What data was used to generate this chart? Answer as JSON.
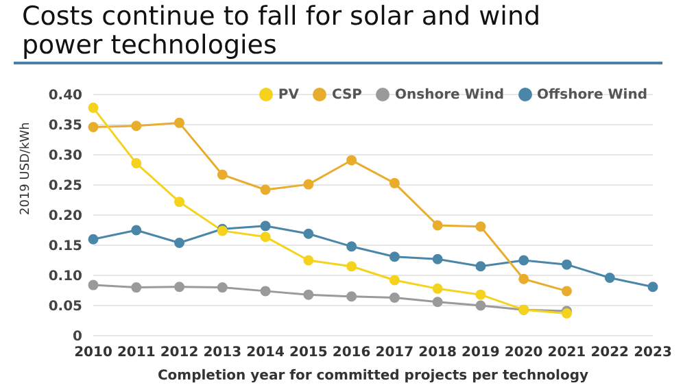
{
  "chart_data": {
    "type": "line",
    "title": "Costs continue to fall for solar and wind power technologies",
    "xlabel": "Completion year for committed projects per technology",
    "ylabel": "2019 USD/kWh",
    "categories": [
      "2010",
      "2011",
      "2012",
      "2013",
      "2014",
      "2015",
      "2016",
      "2017",
      "2018",
      "2019",
      "2020",
      "2021",
      "2022",
      "2023"
    ],
    "series": [
      {
        "name": "PV",
        "color": "#f5d21c",
        "values": [
          0.378,
          0.286,
          0.222,
          0.174,
          0.164,
          0.125,
          0.115,
          0.092,
          0.078,
          0.068,
          0.043,
          0.037,
          null,
          null
        ]
      },
      {
        "name": "CSP",
        "color": "#e8ad2c",
        "values": [
          0.346,
          0.348,
          0.353,
          0.267,
          0.242,
          0.251,
          0.291,
          0.253,
          0.183,
          0.181,
          0.094,
          0.074,
          null,
          null
        ]
      },
      {
        "name": "Onshore Wind",
        "color": "#9a9a9a",
        "values": [
          0.084,
          0.08,
          0.081,
          0.08,
          0.074,
          0.068,
          0.065,
          0.063,
          0.056,
          0.05,
          0.043,
          0.041,
          null,
          null
        ]
      },
      {
        "name": "Offshore Wind",
        "color": "#4a86a8",
        "values": [
          0.16,
          0.175,
          0.154,
          0.177,
          0.182,
          0.169,
          0.148,
          0.131,
          0.127,
          0.115,
          0.125,
          0.118,
          0.096,
          0.081
        ]
      }
    ],
    "ylim": [
      0,
      0.4
    ],
    "yticks": [
      0,
      {
        "value": 0.05,
        "label": "0.05"
      },
      {
        "value": 0.1,
        "label": "0.10"
      },
      {
        "value": 0.15,
        "label": "0.15"
      },
      {
        "value": 0.2,
        "label": "0.20"
      },
      {
        "value": 0.25,
        "label": "0.25"
      },
      {
        "value": 0.3,
        "label": "0.30"
      },
      {
        "value": 0.35,
        "label": "0.35"
      },
      {
        "value": 0.4,
        "label": "0.40"
      }
    ],
    "grid": "y",
    "legend": "top right",
    "marker": "circle",
    "line_style": "solid"
  }
}
